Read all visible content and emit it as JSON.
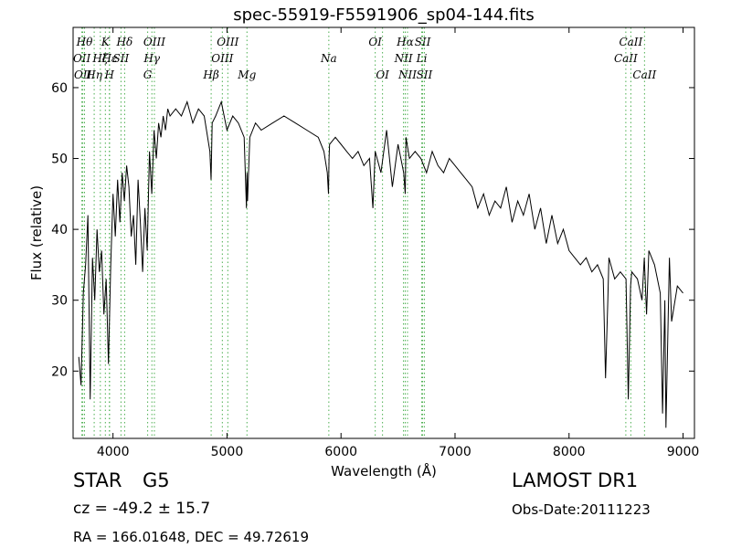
{
  "chart_data": {
    "type": "line",
    "title": "spec-55919-F5591906_sp04-144.fits",
    "xlabel": "Wavelength (Å)",
    "ylabel": "Flux (relative)",
    "xlim": [
      3650,
      9100
    ],
    "ylim": [
      10.5,
      68.5
    ],
    "x_ticks": [
      4000,
      5000,
      6000,
      7000,
      8000,
      9000
    ],
    "y_ticks": [
      20,
      30,
      40,
      50,
      60
    ],
    "grid": false,
    "line_color": "#000000",
    "marker_color": "#4caf50",
    "series": [
      {
        "x": [
          3700,
          3720,
          3740,
          3760,
          3780,
          3800,
          3820,
          3840,
          3860,
          3880,
          3900,
          3920,
          3940,
          3960,
          3980,
          4000,
          4020,
          4040,
          4060,
          4080,
          4100,
          4120,
          4140,
          4160,
          4180,
          4200,
          4220,
          4240,
          4260,
          4280,
          4300,
          4320,
          4340,
          4360,
          4380,
          4400,
          4420,
          4440,
          4460,
          4480,
          4500,
          4550,
          4600,
          4650,
          4700,
          4750,
          4800,
          4850,
          4860,
          4870,
          4900,
          4950,
          5000,
          5050,
          5100,
          5150,
          5170,
          5175,
          5180,
          5200,
          5250,
          5300,
          5400,
          5500,
          5600,
          5700,
          5800,
          5850,
          5880,
          5890,
          5895,
          5900,
          5950,
          6000,
          6050,
          6100,
          6150,
          6200,
          6250,
          6280,
          6300,
          6350,
          6400,
          6450,
          6500,
          6550,
          6563,
          6570,
          6600,
          6650,
          6700,
          6750,
          6800,
          6850,
          6900,
          6950,
          7000,
          7050,
          7100,
          7150,
          7200,
          7250,
          7300,
          7350,
          7400,
          7450,
          7500,
          7550,
          7600,
          7650,
          7700,
          7750,
          7800,
          7850,
          7900,
          7950,
          8000,
          8050,
          8100,
          8150,
          8200,
          8250,
          8300,
          8320,
          8340,
          8350,
          8400,
          8450,
          8500,
          8520,
          8540,
          8550,
          8600,
          8640,
          8660,
          8680,
          8700,
          8750,
          8800,
          8820,
          8840,
          8850,
          8880,
          8900,
          8950,
          9000
        ],
        "values": [
          22,
          18,
          31,
          35,
          42,
          16,
          36,
          30,
          40,
          34,
          37,
          28,
          33,
          21,
          35,
          45,
          39,
          47,
          41,
          48,
          44,
          49,
          46,
          39,
          42,
          35,
          47,
          41,
          34,
          43,
          37,
          51,
          45,
          54,
          50,
          55,
          53,
          56,
          54,
          57,
          56,
          57,
          56,
          58,
          55,
          57,
          56,
          51,
          47,
          55,
          56,
          58,
          54,
          56,
          55,
          53,
          43,
          48,
          44,
          53,
          55,
          54,
          55,
          56,
          55,
          54,
          53,
          51,
          48,
          45,
          50,
          52,
          53,
          52,
          51,
          50,
          51,
          49,
          50,
          43,
          51,
          48,
          54,
          46,
          52,
          48,
          45,
          53,
          50,
          51,
          50,
          48,
          51,
          49,
          48,
          50,
          49,
          48,
          47,
          46,
          43,
          45,
          42,
          44,
          43,
          46,
          41,
          44,
          42,
          45,
          40,
          43,
          38,
          42,
          38,
          40,
          37,
          36,
          35,
          36,
          34,
          35,
          33,
          19,
          30,
          36,
          33,
          34,
          33,
          16,
          32,
          34,
          33,
          30,
          36,
          28,
          37,
          35,
          31,
          14,
          30,
          12,
          36,
          27,
          32,
          31
        ]
      }
    ],
    "line_markers": [
      {
        "x": 3727,
        "label": "OII",
        "row": "top"
      },
      {
        "x": 3735,
        "label": "OII",
        "row": "mid"
      },
      {
        "x": 3750,
        "label": "Hθ",
        "row": "high"
      },
      {
        "x": 3835,
        "label": "Hη",
        "row": "mid"
      },
      {
        "x": 3889,
        "label": "Hζ",
        "row": "top"
      },
      {
        "x": 3933,
        "label": "K",
        "row": "high"
      },
      {
        "x": 3968,
        "label": "H",
        "row": "mid"
      },
      {
        "x": 3970,
        "label": "Hε",
        "row": "top"
      },
      {
        "x": 4070,
        "label": "SII",
        "row": "top"
      },
      {
        "x": 4102,
        "label": "Hδ",
        "row": "high"
      },
      {
        "x": 4304,
        "label": "G",
        "row": "mid"
      },
      {
        "x": 4341,
        "label": "Hγ",
        "row": "top"
      },
      {
        "x": 4363,
        "label": "OIII",
        "row": "high"
      },
      {
        "x": 4861,
        "label": "Hβ",
        "row": "mid"
      },
      {
        "x": 4959,
        "label": "OIII",
        "row": "top"
      },
      {
        "x": 5007,
        "label": "OIII",
        "row": "high"
      },
      {
        "x": 5175,
        "label": "Mg",
        "row": "mid"
      },
      {
        "x": 5893,
        "label": "Na",
        "row": "top"
      },
      {
        "x": 6300,
        "label": "OI",
        "row": "high"
      },
      {
        "x": 6364,
        "label": "OI",
        "row": "mid"
      },
      {
        "x": 6548,
        "label": "NII",
        "row": "top"
      },
      {
        "x": 6563,
        "label": "Hα",
        "row": "high"
      },
      {
        "x": 6583,
        "label": "NII",
        "row": "mid"
      },
      {
        "x": 6708,
        "label": "Li",
        "row": "top"
      },
      {
        "x": 6716,
        "label": "SII",
        "row": "high"
      },
      {
        "x": 6731,
        "label": "SII",
        "row": "mid"
      },
      {
        "x": 8498,
        "label": "CaII",
        "row": "top"
      },
      {
        "x": 8542,
        "label": "CaII",
        "row": "high"
      },
      {
        "x": 8662,
        "label": "CaII",
        "row": "mid"
      }
    ]
  },
  "info": {
    "object_class": "STAR",
    "subclass": "G5",
    "cz": "cz = -49.2 ± 15.7",
    "coords": "RA = 166.01648, DEC = 49.72619",
    "survey": "LAMOST DR1",
    "obs_date": "Obs-Date:20111223"
  }
}
